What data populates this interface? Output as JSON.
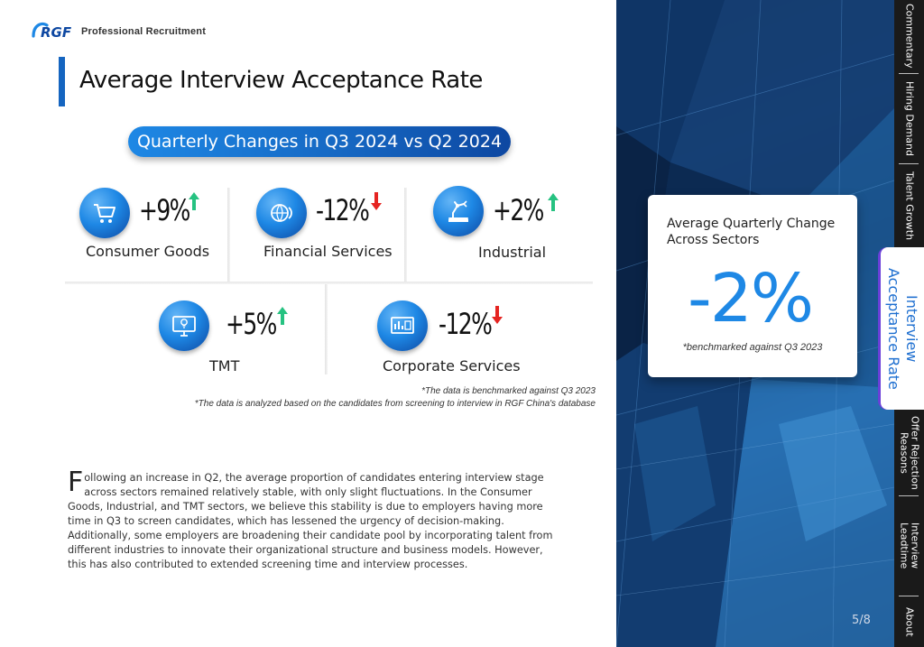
{
  "brand": {
    "logo_text": "RGF",
    "tagline": "Professional Recruitment"
  },
  "page_title": "Average Interview Acceptance Rate",
  "subtitle_pill": "Quarterly Changes in Q3 2024 vs Q2 2024",
  "sectors": [
    {
      "name": "Consumer Goods",
      "value": "+9%",
      "direction": "up",
      "icon": "shopping-cart-icon"
    },
    {
      "name": "Financial Services",
      "value": "-12%",
      "direction": "down",
      "icon": "globe-coin-icon"
    },
    {
      "name": "Industrial",
      "value": "+2%",
      "direction": "up",
      "icon": "robot-arm-icon"
    },
    {
      "name": "TMT",
      "value": "+5%",
      "direction": "up",
      "icon": "monitor-bulb-icon"
    },
    {
      "name": "Corporate Services",
      "value": "-12%",
      "direction": "down",
      "icon": "dashboard-icon"
    }
  ],
  "notes": [
    "*The data is benchmarked against Q3 2023",
    "*The data is analyzed based on the candidates from screening to interview in RGF China's database"
  ],
  "body": {
    "dropcap": "F",
    "text": "ollowing an increase in Q2, the average proportion of candidates entering interview stage across sectors remained relatively stable, with only slight fluctuations. In the Consumer Goods, Industrial, and TMT sectors, we believe this stability is due to employers having more time in Q3 to screen candidates, which has lessened the urgency of decision-making. Additionally, some employers are broadening their candidate pool by incorporating talent from different industries to innovate their organizational structure and business models. However, this has also contributed to extended screening time and interview processes."
  },
  "summary_card": {
    "title": "Average Quarterly Change Across Sectors",
    "value": "-2%",
    "note": "*benchmarked against Q3 2023"
  },
  "page_number": "5/8",
  "nav": {
    "items": [
      "Commentary",
      "Hiring Demand",
      "Talent Growth",
      "Interview Acceptance Rate",
      "Offer Rejection Reasons",
      "Interview Leadtime",
      "About"
    ],
    "active": "Interview Acceptance Rate"
  },
  "colors": {
    "accent": "#1e88e5",
    "up": "#26c281",
    "down": "#e52421",
    "nav_active": "#7b46e0"
  }
}
